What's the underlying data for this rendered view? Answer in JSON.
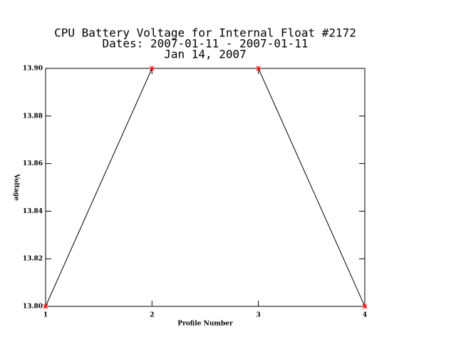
{
  "chart_data": {
    "type": "line",
    "title": [
      "CPU Battery Voltage for Internal Float #2172",
      "Dates:  2007-01-11 -  2007-01-11",
      "Jan 14, 2007"
    ],
    "x_label": "Profile Number",
    "y_label": "Voltage",
    "x": [
      1,
      2,
      3,
      4
    ],
    "values": [
      13.8,
      13.9,
      13.9,
      13.8
    ],
    "color": "#000000",
    "marker_color": "#ff0000",
    "xlim": [
      1,
      4
    ],
    "xticks": [
      1,
      2,
      3,
      4
    ],
    "ylim": [
      13.8,
      13.9
    ],
    "yticks": [
      {
        "value": 13.8,
        "label": "13.80"
      },
      13.82,
      13.84,
      13.86,
      13.88,
      {
        "value": 13.9,
        "label": "13.90"
      }
    ]
  }
}
